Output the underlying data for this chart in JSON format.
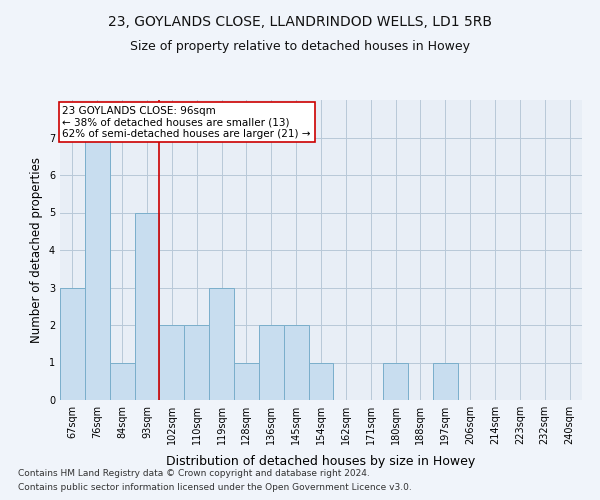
{
  "title_line1": "23, GOYLANDS CLOSE, LLANDRINDOD WELLS, LD1 5RB",
  "title_line2": "Size of property relative to detached houses in Howey",
  "xlabel": "Distribution of detached houses by size in Howey",
  "ylabel": "Number of detached properties",
  "categories": [
    "67sqm",
    "76sqm",
    "84sqm",
    "93sqm",
    "102sqm",
    "110sqm",
    "119sqm",
    "128sqm",
    "136sqm",
    "145sqm",
    "154sqm",
    "162sqm",
    "171sqm",
    "180sqm",
    "188sqm",
    "197sqm",
    "206sqm",
    "214sqm",
    "223sqm",
    "232sqm",
    "240sqm"
  ],
  "values": [
    3,
    7,
    1,
    5,
    2,
    2,
    3,
    1,
    2,
    2,
    1,
    0,
    0,
    1,
    0,
    1,
    0,
    0,
    0,
    0,
    0
  ],
  "bar_color": "#c8ddef",
  "bar_edge_color": "#7aaecb",
  "vline_position": 3.5,
  "vline_color": "#cc0000",
  "annotation_line1": "23 GOYLANDS CLOSE: 96sqm",
  "annotation_line2": "← 38% of detached houses are smaller (13)",
  "annotation_line3": "62% of semi-detached houses are larger (21) →",
  "annotation_box_color": "#ffffff",
  "annotation_box_edge_color": "#cc0000",
  "ylim": [
    0,
    8
  ],
  "yticks": [
    0,
    1,
    2,
    3,
    4,
    5,
    6,
    7
  ],
  "grid_color": "#b8c8d8",
  "footnote_line1": "Contains HM Land Registry data © Crown copyright and database right 2024.",
  "footnote_line2": "Contains public sector information licensed under the Open Government Licence v3.0.",
  "background_color": "#f0f4fa",
  "plot_bg_color": "#e8eef6",
  "title_fontsize": 10,
  "subtitle_fontsize": 9,
  "tick_fontsize": 7,
  "ylabel_fontsize": 8.5,
  "xlabel_fontsize": 9,
  "annotation_fontsize": 7.5,
  "footnote_fontsize": 6.5
}
